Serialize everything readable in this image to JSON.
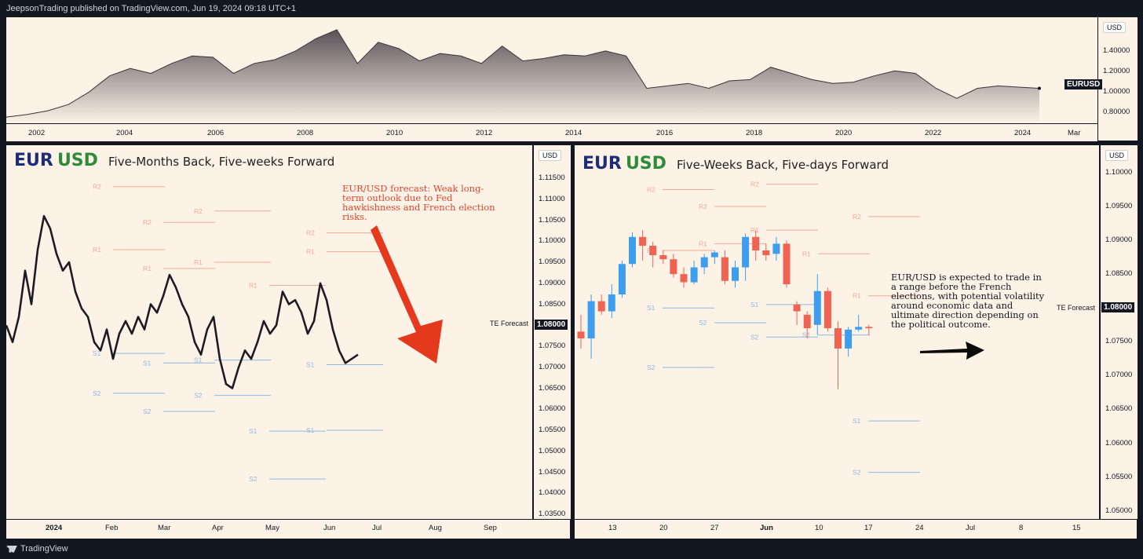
{
  "header": {
    "published": "JeepsonTrading published on TradingView.com, Jun 19, 2024 09:18 UTC+1"
  },
  "footer": {
    "brand": "TradingView"
  },
  "top_chart": {
    "unit": "USD",
    "symbol_label": "EURUSD",
    "y_ticks": [
      "1.40000",
      "1.20000",
      "1.00000",
      "0.80000"
    ],
    "x_ticks": [
      "2002",
      "2004",
      "2006",
      "2008",
      "2010",
      "2012",
      "2014",
      "2016",
      "2018",
      "2020",
      "2022",
      "2024",
      "Mar"
    ]
  },
  "left_chart": {
    "title_eur": "EUR",
    "title_usd": "USD",
    "subtitle": "Five-Months Back, Five-weeks Forward",
    "unit": "USD",
    "forecast_label": "TE Forecast",
    "forecast_value": "1.08000",
    "annotation": "EUR/USD forecast: Weak long-term outlook due to Fed hawkishness and French election risks.",
    "y_ticks": [
      "1.11500",
      "1.11000",
      "1.10500",
      "1.10000",
      "1.09500",
      "1.09000",
      "1.08500",
      "1.07500",
      "1.07000",
      "1.06500",
      "1.06000",
      "1.05500",
      "1.05000",
      "1.04500",
      "1.04000",
      "1.03500"
    ],
    "x_ticks": [
      "2024",
      "Feb",
      "Mar",
      "Apr",
      "May",
      "Jun",
      "Jul",
      "Aug",
      "Sep"
    ],
    "pivot_labels": [
      "R2",
      "R1",
      "R2",
      "R1",
      "R2",
      "R1",
      "R1",
      "R2",
      "R1",
      "S1",
      "S1",
      "S1",
      "S2",
      "S2",
      "S2",
      "S1",
      "S1",
      "S1",
      "S2"
    ]
  },
  "right_chart": {
    "title_eur": "EUR",
    "title_usd": "USD",
    "subtitle": "Five-Weeks Back, Five-days Forward",
    "unit": "USD",
    "forecast_label": "TE Forecast",
    "forecast_value": "1.08000",
    "annotation": "EUR/USD is expected to trade in a range before the French elections, with potential volatility around economic data and ultimate direction depending on the political outcome.",
    "y_ticks": [
      "1.10000",
      "1.09500",
      "1.09000",
      "1.08500",
      "1.07500",
      "1.07000",
      "1.06500",
      "1.06000",
      "1.05500",
      "1.05000"
    ],
    "x_ticks": [
      "13",
      "20",
      "27",
      "Jun",
      "10",
      "17",
      "24",
      "Jul",
      "8",
      "15"
    ],
    "pivot_labels": [
      "R2",
      "R1",
      "R2",
      "R1",
      "R2",
      "R1",
      "R1",
      "R2",
      "R1",
      "S1",
      "S1",
      "S2",
      "S2",
      "S1",
      "S2",
      "S1",
      "S2"
    ]
  },
  "chart_data": [
    {
      "type": "area",
      "series": [
        {
          "values": [
            0.85,
            0.87,
            0.9,
            0.95,
            1.05,
            1.18,
            1.24,
            1.2,
            1.28,
            1.34,
            1.33,
            1.2,
            1.28,
            1.31,
            1.38,
            1.48,
            1.55,
            1.28,
            1.45,
            1.4,
            1.3,
            1.36,
            1.34,
            1.28,
            1.42,
            1.3,
            1.32,
            1.35,
            1.34,
            1.38,
            1.34,
            1.08,
            1.1,
            1.12,
            1.08,
            1.14,
            1.15,
            1.25,
            1.2,
            1.15,
            1.12,
            1.13,
            1.18,
            1.22,
            1.2,
            1.08,
            1.0,
            1.08,
            1.1,
            1.09,
            1.08
          ]
        }
      ],
      "x_range": [
        "2001",
        "2024"
      ],
      "ylim": [
        0.8,
        1.6
      ]
    },
    {
      "type": "line",
      "series": [
        {
          "values": [
            1.08,
            1.076,
            1.082,
            1.093,
            1.085,
            1.098,
            1.106,
            1.103,
            1.097,
            1.093,
            1.095,
            1.088,
            1.084,
            1.082,
            1.076,
            1.074,
            1.079,
            1.072,
            1.078,
            1.081,
            1.078,
            1.082,
            1.079,
            1.085,
            1.083,
            1.087,
            1.092,
            1.089,
            1.085,
            1.082,
            1.076,
            1.073,
            1.079,
            1.082,
            1.072,
            1.066,
            1.065,
            1.07,
            1.074,
            1.072,
            1.076,
            1.081,
            1.078,
            1.08,
            1.088,
            1.085,
            1.086,
            1.083,
            1.078,
            1.081,
            1.09,
            1.086,
            1.079,
            1.074,
            1.071,
            1.072,
            1.073
          ]
        }
      ],
      "ylim": [
        1.035,
        1.118
      ],
      "forecast": 1.08,
      "support_resistance": {
        "R2": [
          1.1115,
          1.103,
          1.0995
        ],
        "R1": [
          1.097,
          1.095,
          1.0935,
          1.0935
        ],
        "S1": [
          1.073,
          1.071,
          1.0705
        ],
        "S2": [
          1.0635,
          1.0595,
          1.0545
        ]
      }
    },
    {
      "type": "bar",
      "chart_kind": "candlestick",
      "series": [
        {
          "open": 1.0765,
          "close": 1.0755,
          "high": 1.079,
          "low": 1.074
        },
        {
          "open": 1.0755,
          "close": 1.081,
          "high": 1.082,
          "low": 1.0725
        },
        {
          "open": 1.081,
          "close": 1.0795,
          "high": 1.082,
          "low": 1.079
        },
        {
          "open": 1.0795,
          "close": 1.082,
          "high": 1.0835,
          "low": 1.0785
        },
        {
          "open": 1.082,
          "close": 1.0865,
          "high": 1.087,
          "low": 1.0815
        },
        {
          "open": 1.0865,
          "close": 1.0905,
          "high": 1.0912,
          "low": 1.086
        },
        {
          "open": 1.0905,
          "close": 1.0892,
          "high": 1.0915,
          "low": 1.087
        },
        {
          "open": 1.0892,
          "close": 1.0878,
          "high": 1.0898,
          "low": 1.086
        },
        {
          "open": 1.0878,
          "close": 1.0872,
          "high": 1.0885,
          "low": 1.0865
        },
        {
          "open": 1.0872,
          "close": 1.085,
          "high": 1.088,
          "low": 1.0845
        },
        {
          "open": 1.085,
          "close": 1.0838,
          "high": 1.086,
          "low": 1.083
        },
        {
          "open": 1.0838,
          "close": 1.086,
          "high": 1.087,
          "low": 1.0835
        },
        {
          "open": 1.086,
          "close": 1.0875,
          "high": 1.088,
          "low": 1.085
        },
        {
          "open": 1.0875,
          "close": 1.0882,
          "high": 1.0885,
          "low": 1.0865
        },
        {
          "open": 1.0875,
          "close": 1.084,
          "high": 1.0885,
          "low": 1.0835
        },
        {
          "open": 1.084,
          "close": 1.086,
          "high": 1.087,
          "low": 1.083
        },
        {
          "open": 1.086,
          "close": 1.0905,
          "high": 1.091,
          "low": 1.084
        },
        {
          "open": 1.0905,
          "close": 1.0885,
          "high": 1.0915,
          "low": 1.087
        },
        {
          "open": 1.0885,
          "close": 1.0878,
          "high": 1.0895,
          "low": 1.087
        },
        {
          "open": 1.088,
          "close": 1.0895,
          "high": 1.0905,
          "low": 1.087
        },
        {
          "open": 1.0895,
          "close": 1.0835,
          "high": 1.09,
          "low": 1.083
        },
        {
          "open": 1.0805,
          "close": 1.0795,
          "high": 1.081,
          "low": 1.0775
        },
        {
          "open": 1.079,
          "close": 1.077,
          "high": 1.0795,
          "low": 1.0755
        },
        {
          "open": 1.0775,
          "close": 1.0825,
          "high": 1.085,
          "low": 1.076
        },
        {
          "open": 1.0825,
          "close": 1.077,
          "high": 1.083,
          "low": 1.0765
        },
        {
          "open": 1.077,
          "close": 1.074,
          "high": 1.078,
          "low": 1.068
        },
        {
          "open": 1.074,
          "close": 1.0768,
          "high": 1.0772,
          "low": 1.0728
        },
        {
          "open": 1.0768,
          "close": 1.0772,
          "high": 1.079,
          "low": 1.0765
        },
        {
          "open": 1.0772,
          "close": 1.077,
          "high": 1.0775,
          "low": 1.076
        }
      ],
      "ylim": [
        1.0495,
        1.1015
      ],
      "forecast": 1.08
    }
  ]
}
